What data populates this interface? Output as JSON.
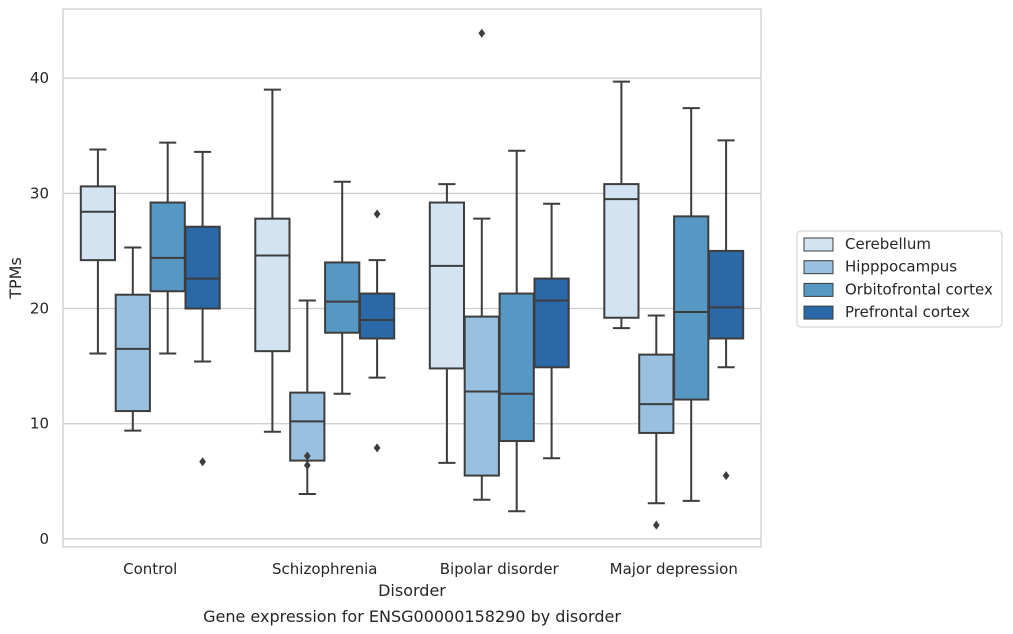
{
  "chart_data": {
    "type": "box",
    "title": "Gene expression for ENSG00000158290 by disorder",
    "xlabel": "Disorder",
    "ylabel": "TPMs",
    "categories": [
      "Control",
      "Schizophrenia",
      "Bipolar disorder",
      "Major depression"
    ],
    "ylim": [
      -0.7,
      46
    ],
    "yticks": [
      0,
      10,
      20,
      30,
      40
    ],
    "grid": true,
    "legend_position": "right",
    "series": [
      {
        "name": "Cerebellum",
        "color": "#d4e3f2",
        "boxes": [
          {
            "whislo": 16.1,
            "q1": 24.2,
            "med": 28.4,
            "q3": 30.6,
            "whishi": 33.8,
            "fliers": []
          },
          {
            "whislo": 9.3,
            "q1": 16.3,
            "med": 24.6,
            "q3": 27.8,
            "whishi": 39.0,
            "fliers": []
          },
          {
            "whislo": 6.6,
            "q1": 14.8,
            "med": 23.7,
            "q3": 29.2,
            "whishi": 30.8,
            "fliers": []
          },
          {
            "whislo": 18.3,
            "q1": 19.2,
            "med": 29.5,
            "q3": 30.8,
            "whishi": 39.7,
            "fliers": []
          }
        ]
      },
      {
        "name": "Hipppocampus",
        "color": "#99c0de",
        "boxes": [
          {
            "whislo": 9.4,
            "q1": 11.1,
            "med": 16.5,
            "q3": 21.2,
            "whishi": 25.3,
            "fliers": []
          },
          {
            "whislo": 3.9,
            "q1": 6.8,
            "med": 10.2,
            "q3": 12.7,
            "whishi": 20.7,
            "fliers": [
              7.2,
              6.4
            ]
          },
          {
            "whislo": 3.4,
            "q1": 5.5,
            "med": 12.8,
            "q3": 19.3,
            "whishi": 27.8,
            "fliers": [
              43.9
            ]
          },
          {
            "whislo": 3.1,
            "q1": 9.2,
            "med": 11.7,
            "q3": 16.0,
            "whishi": 19.4,
            "fliers": [
              1.2
            ]
          }
        ]
      },
      {
        "name": "Orbitofrontal cortex",
        "color": "#5697c4",
        "boxes": [
          {
            "whislo": 16.1,
            "q1": 21.5,
            "med": 24.4,
            "q3": 29.2,
            "whishi": 34.4,
            "fliers": []
          },
          {
            "whislo": 12.6,
            "q1": 17.9,
            "med": 20.6,
            "q3": 24.0,
            "whishi": 31.0,
            "fliers": []
          },
          {
            "whislo": 2.4,
            "q1": 8.5,
            "med": 12.6,
            "q3": 21.3,
            "whishi": 33.7,
            "fliers": []
          },
          {
            "whislo": 3.3,
            "q1": 12.1,
            "med": 19.7,
            "q3": 28.0,
            "whishi": 37.4,
            "fliers": []
          }
        ]
      },
      {
        "name": "Prefrontal cortex",
        "color": "#2a68a8",
        "boxes": [
          {
            "whislo": 15.4,
            "q1": 20.0,
            "med": 22.6,
            "q3": 27.1,
            "whishi": 33.6,
            "fliers": [
              6.7
            ]
          },
          {
            "whislo": 14.0,
            "q1": 17.4,
            "med": 19.0,
            "q3": 21.3,
            "whishi": 24.2,
            "fliers": [
              28.2,
              7.9
            ]
          },
          {
            "whislo": 7.0,
            "q1": 14.9,
            "med": 20.7,
            "q3": 22.6,
            "whishi": 29.1,
            "fliers": []
          },
          {
            "whislo": 14.9,
            "q1": 17.4,
            "med": 20.1,
            "q3": 25.0,
            "whishi": 34.6,
            "fliers": [
              5.5
            ]
          }
        ]
      }
    ]
  }
}
